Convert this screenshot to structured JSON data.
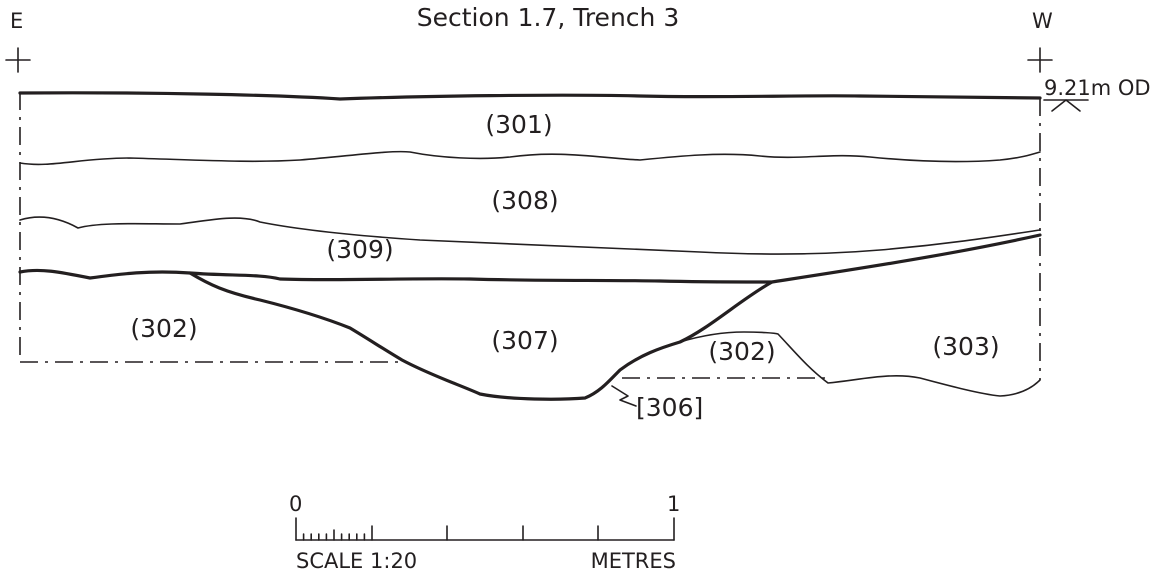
{
  "title": "Section 1.7, Trench 3",
  "orientation": {
    "left": "E",
    "right": "W"
  },
  "datum": "9.21m OD",
  "contexts": [
    {
      "id": "context-301",
      "label": "(301)"
    },
    {
      "id": "context-308",
      "label": "(308)"
    },
    {
      "id": "context-309",
      "label": "(309)"
    },
    {
      "id": "context-302-left",
      "label": "(302)"
    },
    {
      "id": "context-307",
      "label": "(307)"
    },
    {
      "id": "context-302-right",
      "label": "(302)"
    },
    {
      "id": "context-303",
      "label": "(303)"
    }
  ],
  "cut": "[306]",
  "scale_bar": {
    "start": "0",
    "end": "1",
    "scale": "SCALE 1:20",
    "units": "METRES"
  }
}
